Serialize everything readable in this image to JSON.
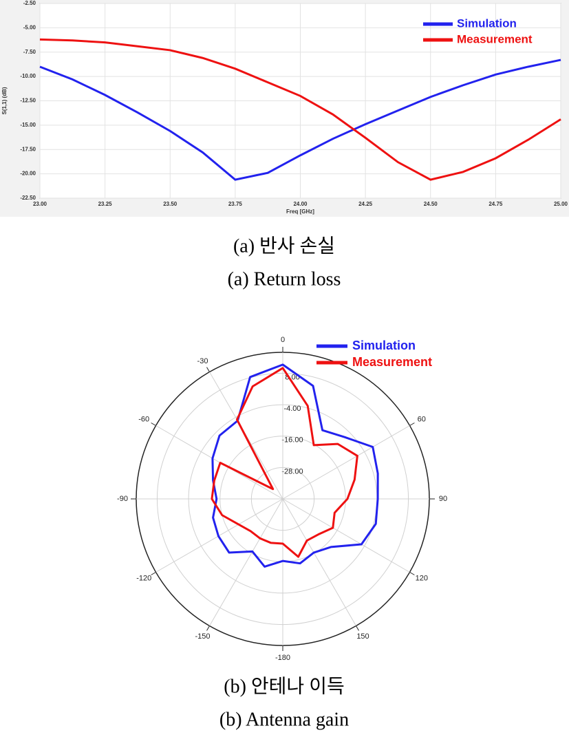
{
  "chart_data": [
    {
      "type": "line",
      "x_label": "Freq [GHz]",
      "y_label": "S(1,1) (dB)",
      "x": [
        23.0,
        23.125,
        23.25,
        23.375,
        23.5,
        23.625,
        23.75,
        23.875,
        24.0,
        24.125,
        24.25,
        24.375,
        24.5,
        24.625,
        24.75,
        24.875,
        25.0
      ],
      "series": [
        {
          "name": "Simulation",
          "color": "#2222ee",
          "values": [
            -9.0,
            -10.3,
            -11.9,
            -13.7,
            -15.6,
            -17.8,
            -20.6,
            -19.9,
            -18.1,
            -16.4,
            -14.9,
            -13.5,
            -12.1,
            -10.9,
            -9.8,
            -9.0,
            -8.3
          ]
        },
        {
          "name": "Measurement",
          "color": "#ee1111",
          "values": [
            -6.2,
            -6.3,
            -6.5,
            -6.9,
            -7.3,
            -8.1,
            -9.2,
            -10.6,
            -12.0,
            -13.9,
            -16.3,
            -18.8,
            -20.6,
            -19.8,
            -18.4,
            -16.5,
            -14.4
          ]
        }
      ],
      "xlim": [
        23.0,
        25.0
      ],
      "xticks": [
        {
          "value": 23.0,
          "label": "23.00"
        },
        {
          "value": 23.25,
          "label": "23.25"
        },
        {
          "value": 23.5,
          "label": "23.50"
        },
        {
          "value": 23.75,
          "label": "23.75"
        },
        {
          "value": 24.0,
          "label": "24.00"
        },
        {
          "value": 24.25,
          "label": "24.25"
        },
        {
          "value": 24.5,
          "label": "24.50"
        },
        {
          "value": 24.75,
          "label": "24.75"
        },
        {
          "value": 25.0,
          "label": "25.00"
        }
      ],
      "ylim": [
        -22.5,
        -2.5
      ],
      "yticks": [
        {
          "value": -2.5,
          "label": "-2.50"
        },
        {
          "value": -5,
          "label": "-5.00"
        },
        {
          "value": -7.5,
          "label": "-7.50"
        },
        {
          "value": -10,
          "label": "-10.00"
        },
        {
          "value": -12.5,
          "label": "-12.50"
        },
        {
          "value": -15,
          "label": "-15.00"
        },
        {
          "value": -17.5,
          "label": "-17.50"
        },
        {
          "value": -20,
          "label": "-20.00"
        },
        {
          "value": -22.5,
          "label": "-22.50"
        }
      ],
      "grid": true,
      "caption": [
        "(a) 반사 손실",
        "(a) Return loss"
      ]
    },
    {
      "type": "polar",
      "theta": [
        -180,
        -165,
        -150,
        -135,
        -120,
        -105,
        -90,
        -75,
        -60,
        -45,
        -30,
        -15,
        0,
        15,
        30,
        45,
        60,
        75,
        90,
        105,
        120,
        135,
        150,
        165
      ],
      "series": [
        {
          "name": "Simulation",
          "color": "#2222ee",
          "values": [
            -16.3,
            -13.2,
            -16.8,
            -11,
            -11.6,
            -12.4,
            -14.7,
            -12.4,
            -9,
            -5.8,
            -5.5,
            8.2,
            11.3,
            4.7,
            -9.7,
            -6.6,
            -0.3,
            -2.4,
            -3.7,
            -3.2,
            -5.3,
            -14,
            -16.3,
            -14.5
          ]
        },
        {
          "name": "Measurement",
          "color": "#ee1111",
          "values": [
            -22.9,
            -22.6,
            -22.6,
            -22.6,
            -20.5,
            -16,
            -12.9,
            -12.9,
            -12.4,
            -34.7,
            -5,
            4.5,
            10,
            -3.2,
            -16.3,
            -10.3,
            -7.1,
            -11.6,
            -15.3,
            -19.5,
            -17.9,
            -20.8,
            -21.6,
            -17.1
          ]
        }
      ],
      "thetaticks": [
        -180,
        -150,
        -120,
        -90,
        -60,
        -30,
        0,
        60,
        90,
        120,
        150
      ],
      "rlim": [
        -40,
        16
      ],
      "rticks": [
        {
          "value": -28,
          "label": "-28.00"
        },
        {
          "value": -16,
          "label": "-16.00"
        },
        {
          "value": -4,
          "label": "-4.00"
        },
        {
          "value": 8,
          "label": "8.00"
        }
      ],
      "grid": true,
      "caption": [
        "(b) 안테나 이득",
        "(b) Antenna gain"
      ]
    }
  ]
}
